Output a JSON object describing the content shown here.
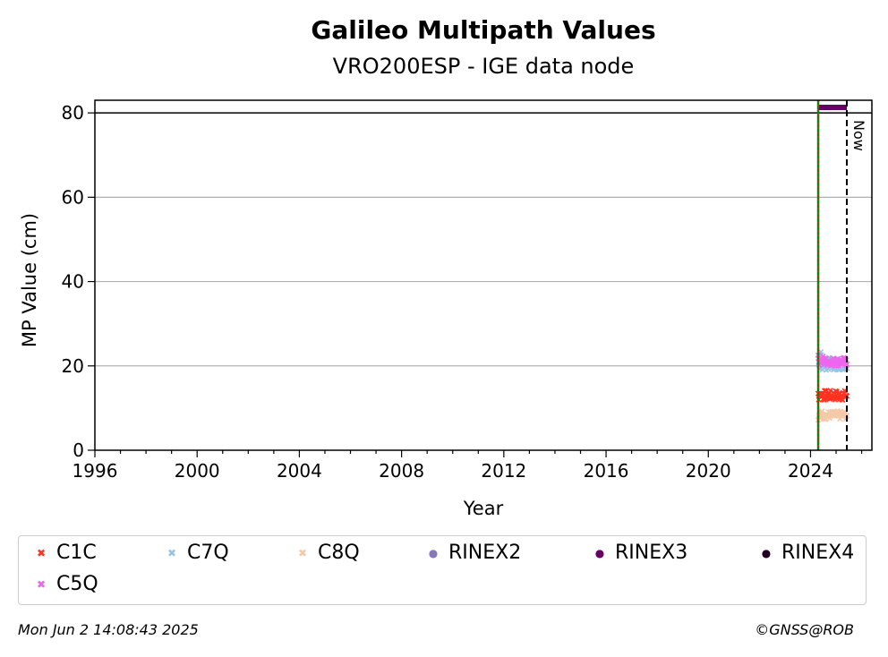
{
  "chart_data": {
    "type": "scatter",
    "title": "Galileo Multipath Values",
    "subtitle": "VRO200ESP - IGE data node",
    "xlabel": "Year",
    "ylabel": "MP Value (cm)",
    "xlim": [
      1996,
      2026.4
    ],
    "ylim": [
      0,
      83
    ],
    "x_ticks": [
      "1996",
      "2000",
      "2004",
      "2008",
      "2012",
      "2016",
      "2020",
      "2024"
    ],
    "y_ticks": [
      "0",
      "20",
      "40",
      "60",
      "80"
    ],
    "grid": "horizontal",
    "threshold_line": 80,
    "start_marker_year": 2024.3,
    "now_marker_year": 2025.42,
    "now_label": "Now",
    "series": [
      {
        "name": "C1C",
        "color": "#ff3322",
        "marker": "x",
        "x_start": 2024.3,
        "x_end": 2025.42,
        "y_mean": 13,
        "y_spread": 1.2
      },
      {
        "name": "C7Q",
        "color": "#99c2e6",
        "marker": "x",
        "x_start": 2024.3,
        "x_end": 2025.42,
        "y_mean": 20.5,
        "y_spread": 1.5
      },
      {
        "name": "C8Q",
        "color": "#f5c9a8",
        "marker": "x",
        "x_start": 2024.3,
        "x_end": 2025.42,
        "y_mean": 8.3,
        "y_spread": 1.0
      },
      {
        "name": "RINEX2",
        "color": "#8877bb",
        "marker": "dot"
      },
      {
        "name": "RINEX3",
        "color": "#660066",
        "marker": "dot",
        "x_start": 2024.3,
        "x_end": 2025.42,
        "y_mean": 81.3,
        "y_spread": 0
      },
      {
        "name": "RINEX4",
        "color": "#220022",
        "marker": "dot"
      },
      {
        "name": "C5Q",
        "color": "#ee66ee",
        "marker": "x",
        "x_start": 2024.3,
        "x_end": 2025.42,
        "y_mean": 21,
        "y_spread": 1.0
      }
    ]
  },
  "footer": {
    "timestamp": "Mon Jun  2 14:08:43 2025",
    "credit": "©GNSS@ROB"
  }
}
